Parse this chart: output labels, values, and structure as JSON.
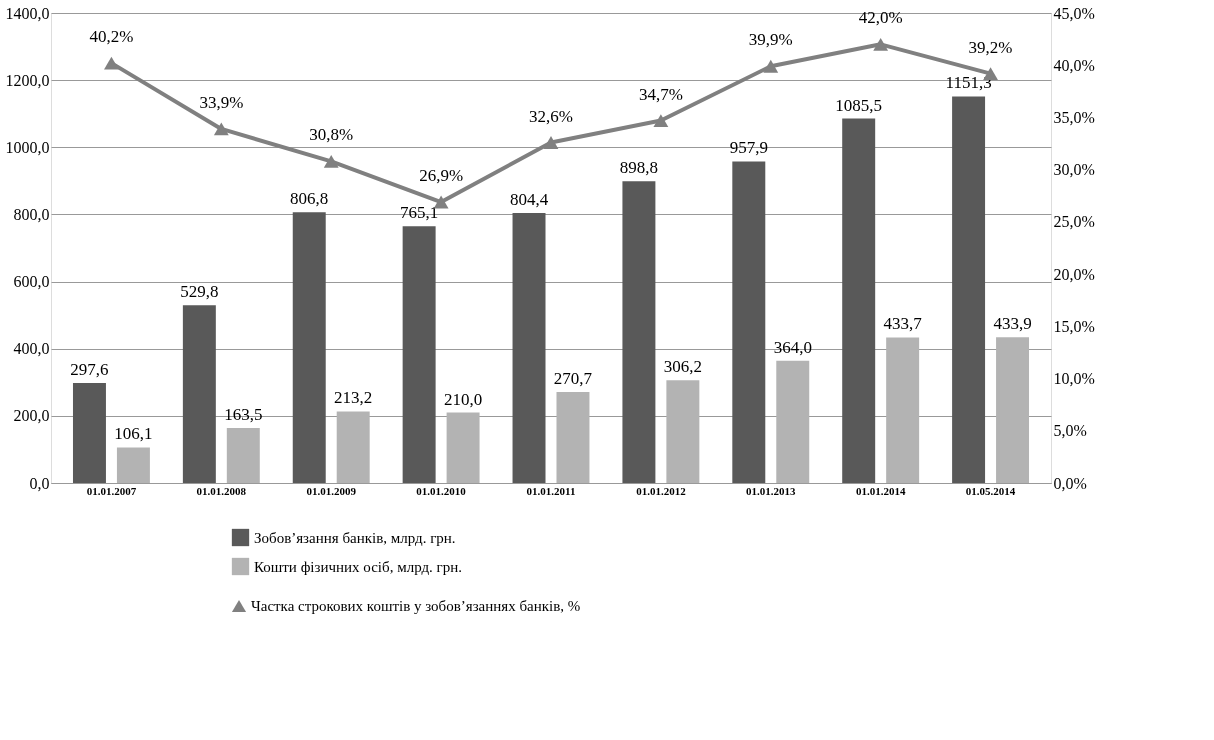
{
  "chart_data": {
    "type": "bar",
    "categories": [
      "01.01.2007",
      "01.01.2008",
      "01.01.2009",
      "01.01.2010",
      "01.01.2011",
      "01.01.2012",
      "01.01.2013",
      "01.01.2014",
      "01.05.2014"
    ],
    "series": [
      {
        "name": "Зобов’язання банків, млрд. грн.",
        "color": "#595959",
        "values": [
          297.6,
          529.8,
          806.8,
          765.1,
          804.4,
          898.8,
          957.9,
          1085.5,
          1151.3
        ],
        "value_labels": [
          "297,6",
          "529,8",
          "806,8",
          "765,1",
          "804,4",
          "898,8",
          "957,9",
          "1085,5",
          "1151,3"
        ]
      },
      {
        "name": "Кошти фізичних осіб, млрд. грн.",
        "color": "#b3b3b3",
        "values": [
          106.1,
          163.5,
          213.2,
          210.0,
          270.7,
          306.2,
          364.0,
          433.7,
          433.9
        ],
        "value_labels": [
          "106,1",
          "163,5",
          "213,2",
          "210,0",
          "270,7",
          "306,2",
          "364,0",
          "433,7",
          "433,9"
        ]
      },
      {
        "name": "Частка строкових коштів у зобов’язаннях  банків, %",
        "color": "#808080",
        "type": "line",
        "axis": "y2",
        "marker": "triangle",
        "values": [
          40.2,
          33.9,
          30.8,
          26.9,
          32.6,
          34.7,
          39.9,
          42.0,
          39.2
        ],
        "value_labels": [
          "40,2%",
          "33,9%",
          "30,8%",
          "26,9%",
          "32,6%",
          "34,7%",
          "39,9%",
          "42,0%",
          "39,2%"
        ]
      }
    ],
    "ylim": [
      0,
      1400
    ],
    "yticks": [
      {
        "value": 0,
        "label": "0,0"
      },
      {
        "value": 200,
        "label": "200,0"
      },
      {
        "value": 400,
        "label": "400,0"
      },
      {
        "value": 600,
        "label": "600,0"
      },
      {
        "value": 800,
        "label": "800,0"
      },
      {
        "value": 1000,
        "label": "1000,0"
      },
      {
        "value": 1200,
        "label": "1200,0"
      },
      {
        "value": 1400,
        "label": "1400,0"
      }
    ],
    "y2lim": [
      0,
      45
    ],
    "y2ticks": [
      {
        "value": 0,
        "label": "0,0%"
      },
      {
        "value": 5,
        "label": "5,0%"
      },
      {
        "value": 10,
        "label": "10,0%"
      },
      {
        "value": 15,
        "label": "15,0%"
      },
      {
        "value": 20,
        "label": "20,0%"
      },
      {
        "value": 25,
        "label": "25,0%"
      },
      {
        "value": 30,
        "label": "30,0%"
      },
      {
        "value": 35,
        "label": "35,0%"
      },
      {
        "value": 40,
        "label": "40,0%"
      },
      {
        "value": 45,
        "label": "45,0%"
      }
    ],
    "grid": "y",
    "legend": "bottom"
  }
}
